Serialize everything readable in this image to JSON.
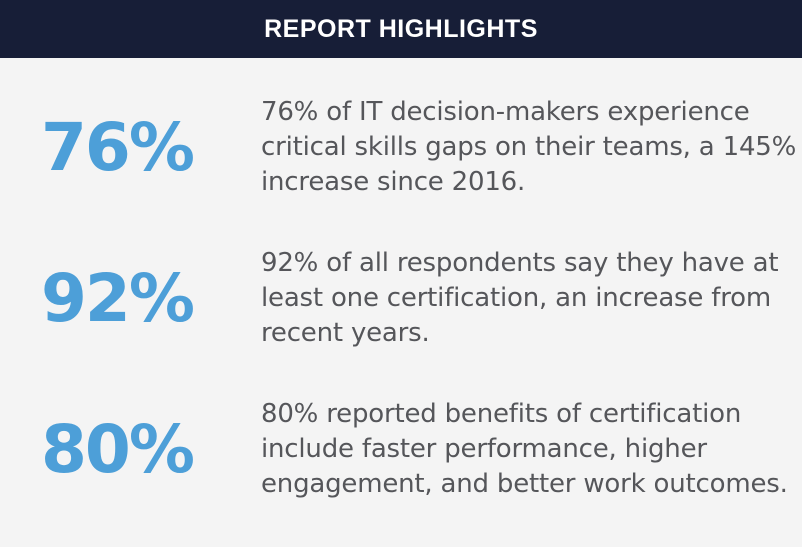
{
  "header": {
    "title": "REPORT HIGHLIGHTS"
  },
  "highlights": [
    {
      "stat": "76%",
      "lines": [
        "76% of IT decision-makers experience",
        "critical skills gaps on their teams, a 145%",
        "increase since 2016."
      ]
    },
    {
      "stat": "92%",
      "lines": [
        "92% of all respondents say they have at",
        "least one certification, an increase from",
        "recent years."
      ]
    },
    {
      "stat": "80%",
      "lines": [
        "80% reported benefits of certification",
        "include faster performance, higher",
        "engagement, and better work outcomes."
      ]
    }
  ],
  "colors": {
    "header_background": "#171E37",
    "header_text": "#FFFFFF",
    "stat_blue": "#4D9FD8",
    "body_text": "#55565A",
    "page_background": "#F4F4F4"
  }
}
